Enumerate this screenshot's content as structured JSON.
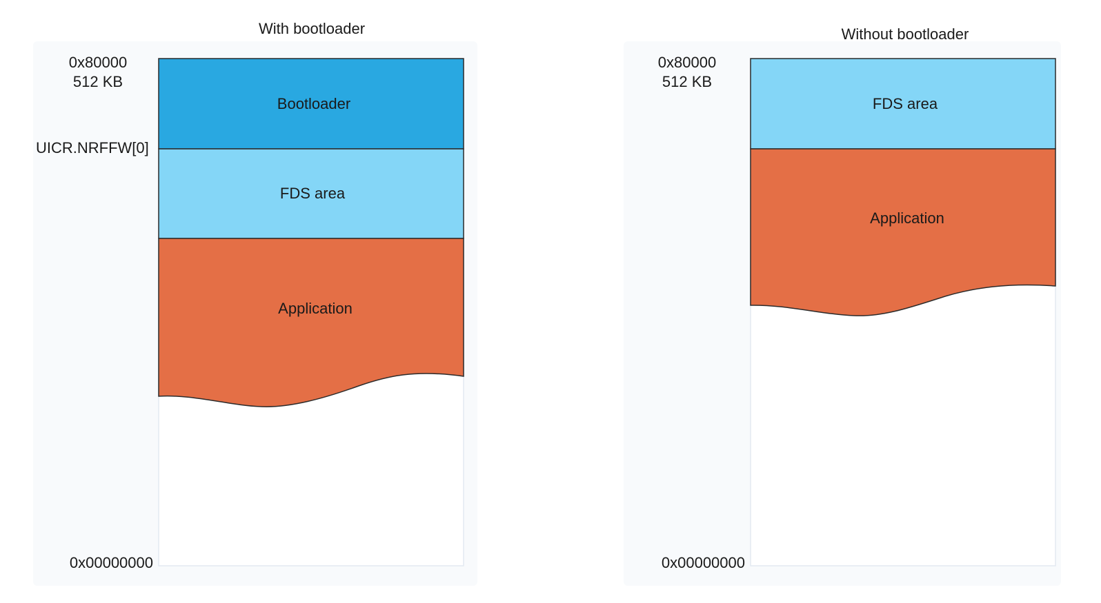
{
  "panels": [
    {
      "title": "With bootloader",
      "top_address": "0x80000",
      "top_size": "512 KB",
      "boundary_label": "UICR.NRFFW[0]",
      "bottom_address": "0x00000000",
      "regions": [
        {
          "label": "Bootloader",
          "color": "#29a8e1"
        },
        {
          "label": "FDS area",
          "color": "#84d6f7"
        },
        {
          "label": "Application",
          "color": "#e46f46"
        }
      ]
    },
    {
      "title": "Without bootloader",
      "top_address": "0x80000",
      "top_size": "512 KB",
      "bottom_address": "0x00000000",
      "regions": [
        {
          "label": "FDS area",
          "color": "#84d6f7"
        },
        {
          "label": "Application",
          "color": "#e46f46"
        }
      ]
    }
  ],
  "colors": {
    "outline": "#2b2b2b",
    "memory_background": "#ffffff",
    "panel_shadow": "#eef2f7"
  }
}
